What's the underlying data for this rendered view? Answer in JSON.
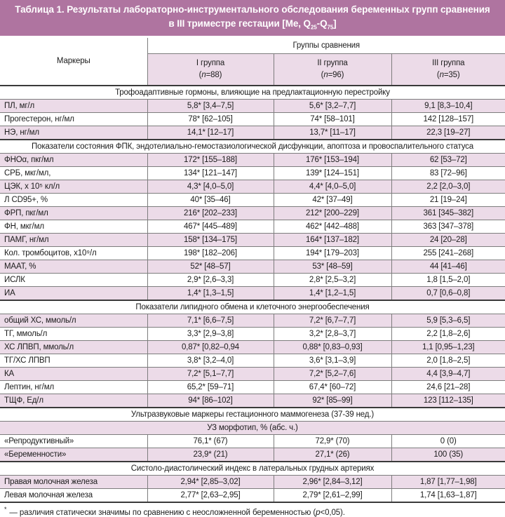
{
  "colors": {
    "title_bg": "#af74a0",
    "row_pink": "#ecdbe8",
    "border_dark": "#3a3a3a",
    "border_light": "#7d7d7d"
  },
  "title": {
    "line1": "Таблица 1. Результаты лабораторно-инструментального обследования беременных групп сравнения",
    "line2_pre": "в  III триместре гестации [Ме, Q",
    "line2_sub1": "25",
    "line2_mid": "-Q",
    "line2_sub2": "75",
    "line2_post": "]"
  },
  "header": {
    "markers_label": "Маркеры",
    "groups_label": "Группы сравнения",
    "groups": [
      {
        "name": "I группа",
        "paren": "(",
        "n": "n",
        "rest": "=88)"
      },
      {
        "name": "II группа",
        "paren": "(",
        "n": "n",
        "rest": "=96)"
      },
      {
        "name": "III группа",
        "paren": "(",
        "n": "n",
        "rest": "=35)"
      }
    ]
  },
  "table": {
    "sections": [
      {
        "title": "Трофоадаптивные гормоны, влияющие на предлактационную перестройку",
        "rows": [
          {
            "marker": "ПЛ, мг/л",
            "values": [
              "5,8* [3,4–7,5]",
              "5,6* [3,2–7,7]",
              "9,1 [8,3–10,4]"
            ]
          },
          {
            "marker": "Прогестерон, нг/мл",
            "values": [
              "78* [62–105]",
              "74* [58–101]",
              "142 [128–157]"
            ]
          },
          {
            "marker": "НЭ, нг/мл",
            "values": [
              "14,1* [12–17]",
              "13,7* [11–17]",
              "22,3 [19–27]"
            ]
          }
        ]
      },
      {
        "title": "Показатели состояния ФПК, эндотелиально-гемостазиологической дисфункции, апоптоза и провоспалительного статуса",
        "rows": [
          {
            "marker": "ФНОα, пкг/мл",
            "values": [
              "172* [155–188]",
              "176* [153–194]",
              "62 [53–72]"
            ]
          },
          {
            "marker": "СРБ, мкг/мл,",
            "values": [
              "134* [121–147]",
              "139* [124–151]",
              "83 [72–96]"
            ]
          },
          {
            "marker": "ЦЭК, х 10⁵ кл/л",
            "values": [
              "4,3* [4,0–5,0]",
              "4,4* [4,0–5,0]",
              "2,2 [2,0–3,0]"
            ]
          },
          {
            "marker": "Л CD95+, %",
            "values": [
              "40* [35–46]",
              "42* [37–49]",
              "21 [19–24]"
            ]
          },
          {
            "marker": "ФРП, пкг/мл",
            "values": [
              "216* [202–233]",
              "212* [200–229]",
              "361 [345–382]"
            ]
          },
          {
            "marker": "ФН, мкг/мл",
            "values": [
              "467* [445–489]",
              "462* [442–488]",
              "363 [347–378]"
            ]
          },
          {
            "marker": "ПАМГ, нг/мл",
            "values": [
              "158* [134–175]",
              "164* [137–182]",
              "24 [20–28]"
            ]
          },
          {
            "marker": "Кол. тромбоцитов, х10⁹/л",
            "values": [
              "198* [182–206]",
              "194* [179–203]",
              "255 [241–268]"
            ]
          },
          {
            "marker": "МААТ, %",
            "values": [
              "52* [48–57]",
              "53* [48–59]",
              "44 [41–46]"
            ]
          },
          {
            "marker": "ИСЛК",
            "values": [
              "2,9* [2,6–3,3]",
              "2,8* [2,5–3,2]",
              "1,8 [1,5–2,0]"
            ]
          },
          {
            "marker": "ИА",
            "values": [
              "1,4* [1,3–1,5]",
              "1,4* [1,2–1,5]",
              "0,7 [0,6–0,8]"
            ]
          }
        ]
      },
      {
        "title": "Показатели липидного обмена и клеточного энергообеспечения",
        "rows": [
          {
            "marker": "общий ХС, ммоль/л",
            "values": [
              "7,1* [6,6–7,5]",
              "7,2* [6,7–7,7]",
              "5,9 [5,3–6,5]"
            ]
          },
          {
            "marker": "ТГ, ммоль/л",
            "values": [
              "3,3* [2,9–3,8]",
              "3,2* [2,8–3,7]",
              "2,2 [1,8–2,6]"
            ]
          },
          {
            "marker": "ХС ЛПВП, ммоль/л",
            "values": [
              "0,87* [0,82–0,94",
              "0,88* [0,83–0,93]",
              "1,1 [0,95–1,23]"
            ]
          },
          {
            "marker": "ТГ/ХС ЛПВП",
            "values": [
              "3,8* [3,2–4,0]",
              "3,6* [3,1–3,9]",
              "2,0 [1,8–2,5]"
            ]
          },
          {
            "marker": "КА",
            "values": [
              "7,2* [5,1–7,7]",
              "7,2* [5,2–7,6]",
              "4,4 [3,9–4,7]"
            ]
          },
          {
            "marker": "Лептин, нг/мл",
            "values": [
              "65,2* [59–71]",
              "67,4* [60–72]",
              "24,6 [21–28]"
            ]
          },
          {
            "marker": "ТЩФ, Ед/л",
            "values": [
              "94* [86–102]",
              "92* [85–99]",
              "123 [112–135]"
            ]
          }
        ]
      },
      {
        "title": "Ультразвуковые маркеры гестационного маммогенеза (37-39 нед.)",
        "subheader": "УЗ морфотип, % (абс. ч.)",
        "rows": [
          {
            "marker": "«Репродуктивный»",
            "values": [
              "76,1* (67)",
              "72,9* (70)",
              "0 (0)"
            ]
          },
          {
            "marker": "«Беременности»",
            "values": [
              "23,9* (21)",
              "27,1* (26)",
              "100 (35)"
            ]
          }
        ]
      },
      {
        "title": "Систоло-диастолический индекс в латеральных грудных артериях",
        "rows": [
          {
            "marker": "Правая молочная железа",
            "values": [
              "2,94* [2,85–3,02]",
              "2,96* [2,84–3,12]",
              "1,87 [1,77–1,98]"
            ]
          },
          {
            "marker": "Левая молочная железа",
            "values": [
              "2,77* [2,63–2,95]",
              "2,79* [2,61–2,99]",
              "1,74 [1,63–1,87]"
            ]
          }
        ]
      }
    ]
  },
  "footnote": {
    "star": "*",
    "text_pre": "— различия статически значимы по сравнению с неосложненной беременностью (",
    "p": "p",
    "text_post": "<0,05)."
  }
}
